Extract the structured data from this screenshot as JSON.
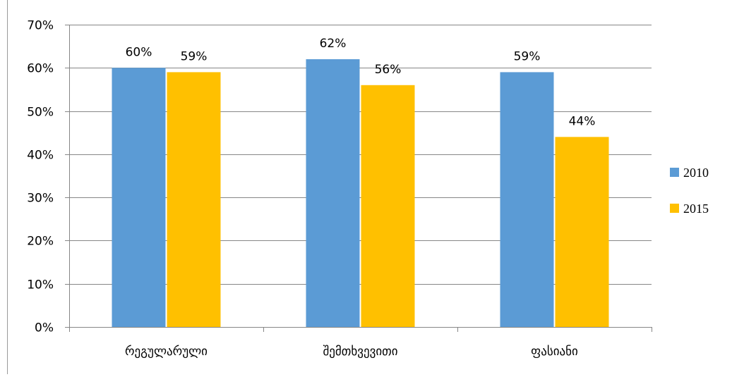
{
  "chart_data": {
    "type": "bar",
    "categories": [
      "რეგულარული",
      "შემთხვევითი",
      "ფასიანი"
    ],
    "series": [
      {
        "name": "2010",
        "values": [
          60,
          62,
          59
        ],
        "labels": [
          "60%",
          "62%",
          "59%"
        ],
        "color": "#5B9BD5"
      },
      {
        "name": "2015",
        "values": [
          59,
          56,
          44
        ],
        "labels": [
          "59%",
          "56%",
          "44%"
        ],
        "color": "#FFC000"
      }
    ],
    "y_ticks": [
      "0%",
      "10%",
      "20%",
      "30%",
      "40%",
      "50%",
      "60%",
      "70%"
    ],
    "ylim": [
      0,
      70
    ],
    "grid": true,
    "legend_position": "right",
    "gridline_color": "#868686"
  }
}
